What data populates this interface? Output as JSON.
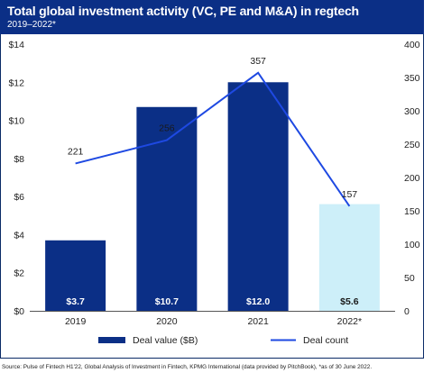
{
  "header": {
    "title": "Total global investment activity (VC, PE and M&A) in regtech",
    "subtitle": "2019–2022*"
  },
  "source": "Source: Pulse of Fintech H1'22, Global Analysis of Investment in Fintech, KPMG International (data provided by PitchBook), *as of 30 June 2022.",
  "colors": {
    "header_bg": "#0b2f86",
    "bar": "#0b2f86",
    "bar_highlight": "#cdeff9",
    "line": "#1e49e2"
  },
  "chart_data": {
    "type": "bar",
    "categories": [
      "2019",
      "2020",
      "2021",
      "2022*"
    ],
    "series": [
      {
        "name": "Deal value ($B)",
        "type": "bar",
        "axis": "left",
        "values": [
          3.7,
          10.7,
          12.0,
          5.6
        ],
        "labels": [
          "$3.7",
          "$10.7",
          "$12.0",
          "$5.6"
        ]
      },
      {
        "name": "Deal count",
        "type": "line",
        "axis": "right",
        "values": [
          221,
          256,
          357,
          157
        ],
        "labels": [
          "221",
          "256",
          "357",
          "157"
        ]
      }
    ],
    "y_left": {
      "ylim": [
        0,
        14
      ],
      "ticks": [
        0,
        2,
        4,
        6,
        8,
        10,
        12,
        14
      ],
      "tick_labels": [
        "$0",
        "$2",
        "$4",
        "$6",
        "$8",
        "$10",
        "$12",
        "$14"
      ]
    },
    "y_right": {
      "ylim": [
        0,
        400
      ],
      "ticks": [
        0,
        50,
        100,
        150,
        200,
        250,
        300,
        350,
        400
      ],
      "tick_labels": [
        "0",
        "50",
        "100",
        "150",
        "200",
        "250",
        "300",
        "350",
        "400"
      ]
    },
    "grid": false,
    "legend": "bottom"
  }
}
